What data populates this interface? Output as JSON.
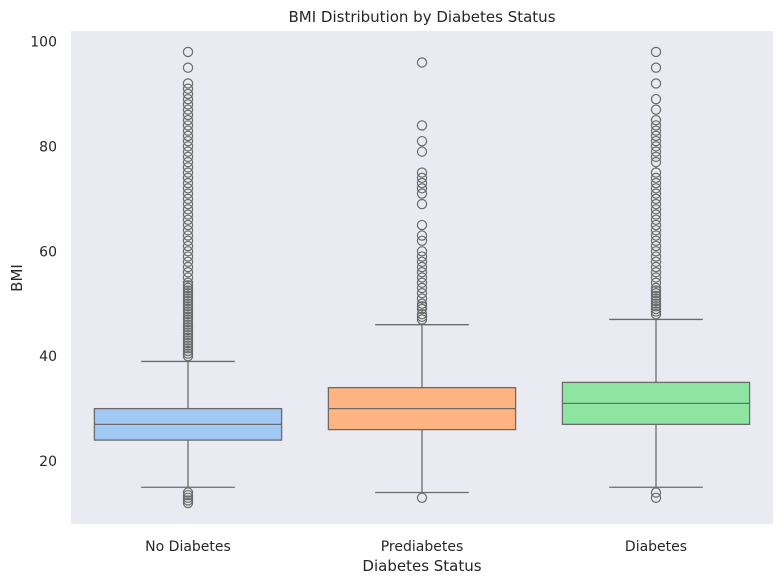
{
  "chart_data": {
    "type": "box",
    "title": "BMI Distribution by Diabetes Status",
    "xlabel": "Diabetes Status",
    "ylabel": "BMI",
    "ylim": [
      8,
      102
    ],
    "yticks": [
      20,
      40,
      60,
      80,
      100
    ],
    "grid": false,
    "categories": [
      "No Diabetes",
      "Prediabetes",
      "Diabetes"
    ],
    "colors": [
      "#a1c9f4",
      "#ffb482",
      "#8de5a1"
    ],
    "plot_background": "#eaeaf2",
    "line_color": "#6b6b6b",
    "boxes": [
      {
        "category": "No Diabetes",
        "whisker_low": 15,
        "q1": 24,
        "median": 27,
        "q3": 30,
        "whisker_high": 39,
        "outliers": [
          12,
          12.5,
          13,
          13.5,
          14,
          40,
          40.5,
          41,
          41.5,
          42,
          42.5,
          43,
          43.5,
          44,
          44.5,
          45,
          45.5,
          46,
          46.5,
          47,
          47.5,
          48,
          48.5,
          49,
          49.5,
          50,
          50.5,
          51,
          51.5,
          52,
          52.5,
          53,
          53.5,
          54,
          55,
          56,
          57,
          58,
          59,
          60,
          61,
          62,
          63,
          64,
          65,
          66,
          67,
          68,
          69,
          70,
          71,
          72,
          73,
          74,
          75,
          76,
          77,
          78,
          79,
          80,
          81,
          82,
          83,
          84,
          85,
          86,
          87,
          88,
          89,
          90,
          91,
          92,
          95,
          98
        ]
      },
      {
        "category": "Prediabetes",
        "whisker_low": 14,
        "q1": 26,
        "median": 30,
        "q3": 34,
        "whisker_high": 46,
        "outliers": [
          13,
          47,
          47.5,
          48,
          49,
          49.5,
          50,
          51,
          52,
          53,
          54,
          55,
          56,
          57,
          58,
          59,
          60,
          62,
          63,
          65,
          69,
          71,
          72,
          73,
          74,
          75,
          79,
          81,
          84,
          96
        ]
      },
      {
        "category": "Diabetes",
        "whisker_low": 15,
        "q1": 27,
        "median": 31,
        "q3": 35,
        "whisker_high": 47,
        "outliers": [
          13,
          14,
          48,
          48.5,
          49,
          49.5,
          50,
          50.5,
          51,
          51.5,
          52,
          52.5,
          53,
          54,
          55,
          56,
          57,
          58,
          59,
          60,
          61,
          62,
          63,
          64,
          65,
          66,
          67,
          68,
          69,
          70,
          71,
          72,
          73,
          74,
          75,
          77,
          78,
          79,
          80,
          81,
          82,
          83,
          84,
          85,
          87,
          89,
          92,
          95,
          98
        ]
      }
    ]
  }
}
